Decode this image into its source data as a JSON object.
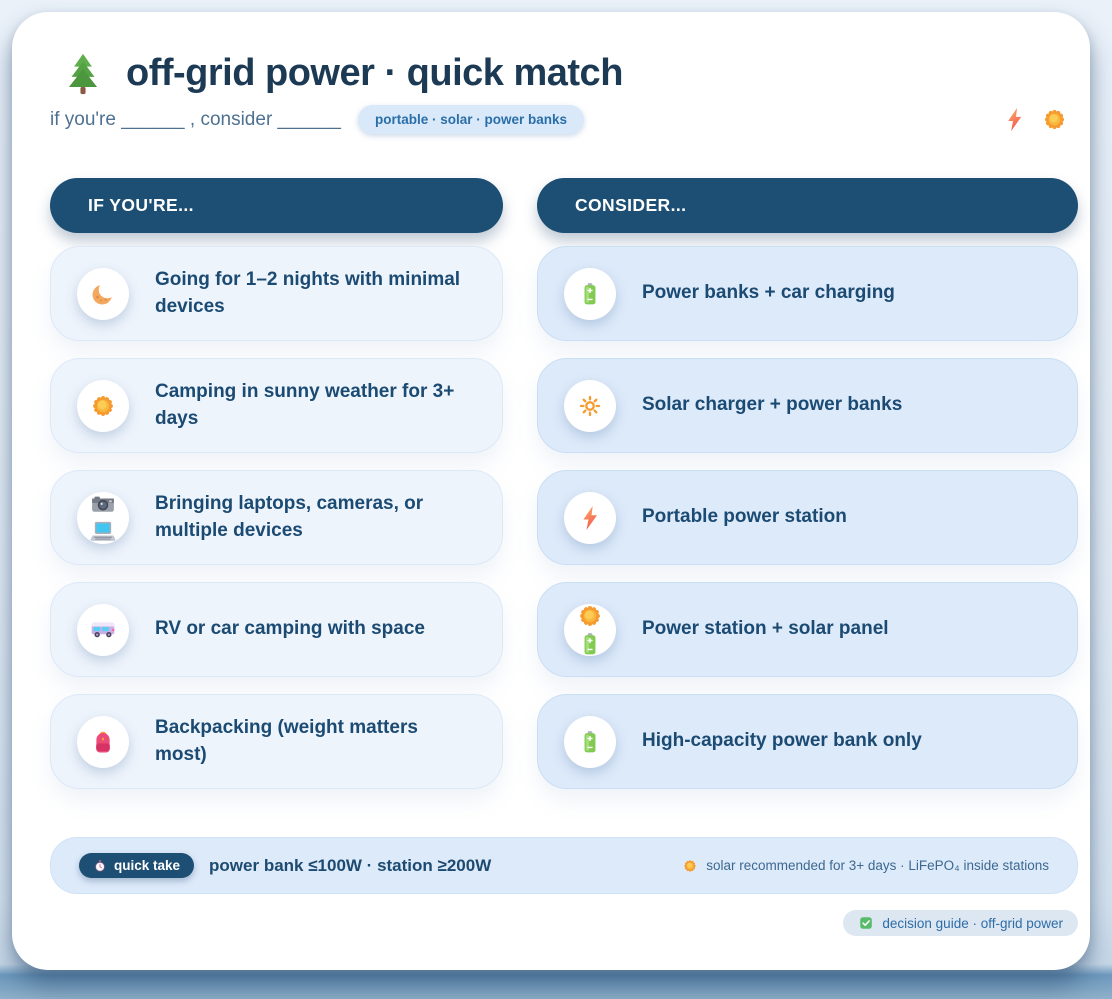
{
  "page": {
    "title": "off-grid power · quick match",
    "title_icon": "tree",
    "subtitle": "if you're ______ , consider ______",
    "topic_pill": "portable · solar · power banks",
    "header_icons": [
      "bolt",
      "sun-fill"
    ]
  },
  "columns": {
    "left": {
      "header": "IF YOU'RE...",
      "rows": [
        {
          "icons": [
            "moon"
          ],
          "label": "Going for 1–2 nights with minimal devices"
        },
        {
          "icons": [
            "sun-fill"
          ],
          "label": "Camping in sunny weather for 3+ days"
        },
        {
          "icons": [
            "camera",
            "laptop"
          ],
          "label": "Bringing laptops, cameras, or multiple devices"
        },
        {
          "icons": [
            "van"
          ],
          "label": "RV or car camping with space"
        },
        {
          "icons": [
            "backpack"
          ],
          "label": "Backpacking (weight matters most)"
        }
      ]
    },
    "right": {
      "header": "CONSIDER...",
      "rows": [
        {
          "icons": [
            "battery"
          ],
          "label": "Power banks + car charging"
        },
        {
          "icons": [
            "sun-outline"
          ],
          "label": "Solar charger + power banks"
        },
        {
          "icons": [
            "bolt"
          ],
          "label": "Portable power station"
        },
        {
          "icons": [
            "sun-fill",
            "battery"
          ],
          "label": "Power station + solar panel"
        },
        {
          "icons": [
            "battery"
          ],
          "label": "High-capacity power bank only"
        }
      ]
    }
  },
  "footer": {
    "quick_take_icon": "stopwatch",
    "quick_take_badge": "quick take",
    "summary": "power bank ≤100W · station ≥200W",
    "note_icon": "sun-fill",
    "note": "solar recommended for 3+ days · LiFePO₄ inside stations",
    "stamp_icon": "check",
    "stamp": "decision guide · off-grid power"
  },
  "colors": {
    "header_pill_bg": "#1d4e73",
    "title_text": "#1d3a55",
    "row_text": "#1b4a72",
    "left_row_bg": "#eef4fc",
    "right_row_bg": "#ddeafa",
    "topic_pill_text": "#2a6ea8",
    "page_bottom_band": "#6d99bd"
  }
}
